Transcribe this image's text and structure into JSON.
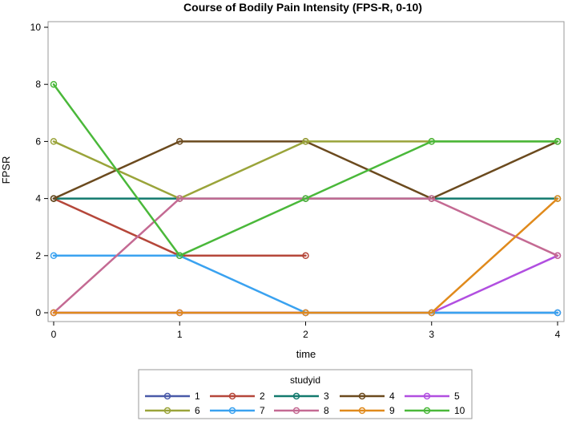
{
  "chart_data": {
    "type": "line",
    "title": "Course of Bodily Pain Intensity (FPS-R, 0-10)",
    "xlabel": "time",
    "ylabel": "FPSR",
    "xlim": [
      0,
      4
    ],
    "ylim": [
      0,
      10
    ],
    "x_ticks": [
      0,
      1,
      2,
      3,
      4
    ],
    "y_ticks": [
      0,
      2,
      4,
      6,
      8,
      10
    ],
    "grid": false,
    "legend_title": "studyid",
    "legend_placement": "bottom",
    "series": [
      {
        "name": "1",
        "color": "#4a5aa8",
        "x": [
          0,
          1,
          2,
          3,
          4
        ],
        "values": [
          0,
          0,
          0,
          0,
          0
        ]
      },
      {
        "name": "2",
        "color": "#b5473a",
        "x": [
          0,
          1,
          2
        ],
        "values": [
          4,
          2,
          2
        ]
      },
      {
        "name": "3",
        "color": "#137a6e",
        "x": [
          0,
          1,
          2,
          3,
          4
        ],
        "values": [
          4,
          4,
          4,
          4,
          4
        ]
      },
      {
        "name": "4",
        "color": "#6b4a1e",
        "x": [
          0,
          1,
          2,
          3,
          4
        ],
        "values": [
          4,
          6,
          6,
          4,
          6
        ]
      },
      {
        "name": "5",
        "color": "#b14fe0",
        "x": [
          0,
          1,
          2,
          3,
          4
        ],
        "values": [
          0,
          0,
          0,
          0,
          2
        ]
      },
      {
        "name": "6",
        "color": "#9aa43a",
        "x": [
          0,
          1,
          2,
          3,
          4
        ],
        "values": [
          6,
          4,
          6,
          6,
          6
        ]
      },
      {
        "name": "7",
        "color": "#3aa2f0",
        "x": [
          0,
          1,
          2,
          3,
          4
        ],
        "values": [
          2,
          2,
          0,
          0,
          0
        ]
      },
      {
        "name": "8",
        "color": "#c46a93",
        "x": [
          0,
          1,
          2,
          3,
          4
        ],
        "values": [
          0,
          4,
          4,
          4,
          2
        ]
      },
      {
        "name": "9",
        "color": "#e08a1c",
        "x": [
          0,
          1,
          2,
          3,
          4
        ],
        "values": [
          0,
          0,
          0,
          0,
          4
        ]
      },
      {
        "name": "10",
        "color": "#4ab83a",
        "x": [
          0,
          1,
          2,
          3,
          4
        ],
        "values": [
          8,
          2,
          4,
          6,
          6
        ]
      }
    ]
  }
}
